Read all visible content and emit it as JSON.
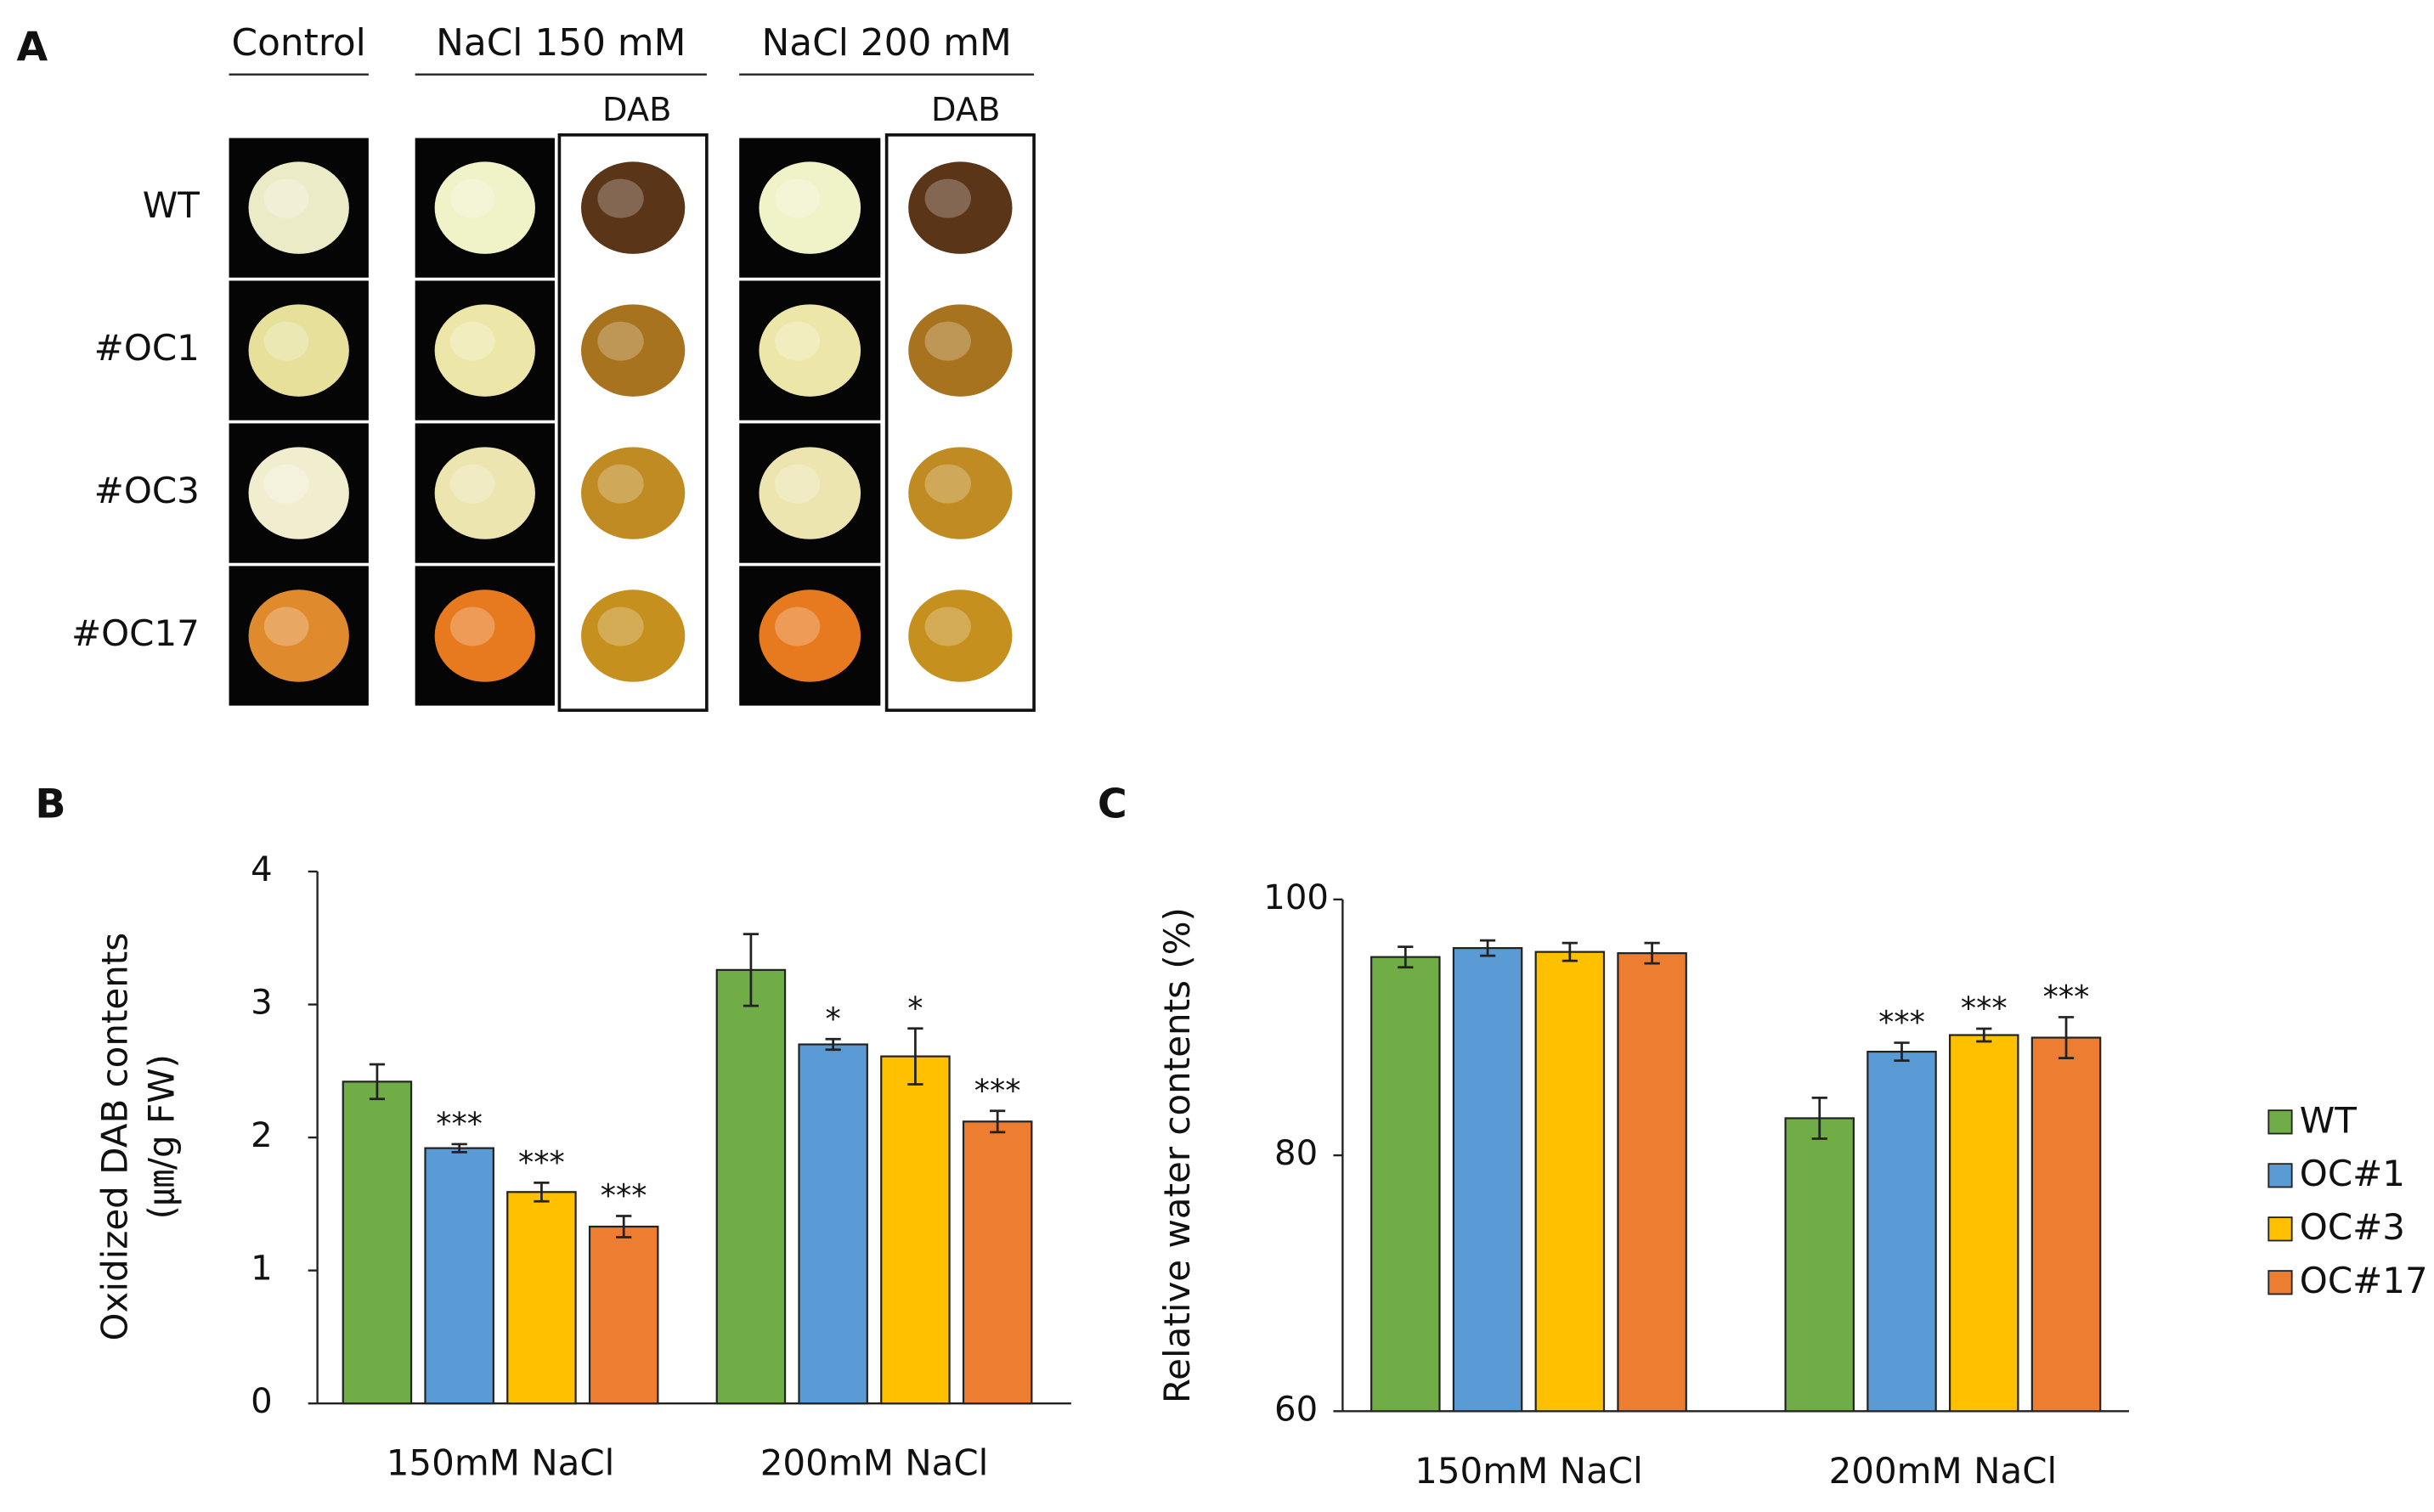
{
  "panel_a": {
    "label": "A",
    "columns": [
      "Control",
      "NaCl 150 mM",
      "NaCl 200 mM"
    ],
    "stain": [
      "DAB",
      "DAB"
    ],
    "rows": [
      "WT",
      "#OC1",
      "#OC3",
      "#OC17"
    ]
  },
  "chart_data": [
    {
      "type": "bar",
      "panel_label": "B",
      "y_label": [
        "Oxidized DAB contents",
        "(㎛/g FW)"
      ],
      "categories": [
        "150mM NaCl",
        "200mM NaCl"
      ],
      "ylim": [
        0,
        4
      ],
      "yticks": [
        0,
        1,
        2,
        3,
        4
      ],
      "series": [
        {
          "color": "#70ad47",
          "values": [
            2.42,
            3.26
          ],
          "errors": [
            0.13,
            0.27
          ],
          "significance": [
            null,
            null
          ]
        },
        {
          "color": "#5b9bd5",
          "values": [
            1.92,
            2.7
          ],
          "errors": [
            0.03,
            0.04
          ],
          "significance": [
            "***",
            "*"
          ]
        },
        {
          "color": "#ffc000",
          "values": [
            1.59,
            2.61
          ],
          "errors": [
            0.07,
            0.21
          ],
          "significance": [
            "***",
            "*"
          ]
        },
        {
          "color": "#ed7d31",
          "values": [
            1.33,
            2.12
          ],
          "errors": [
            0.08,
            0.08
          ],
          "significance": [
            "***",
            "***"
          ]
        }
      ]
    },
    {
      "type": "bar",
      "panel_label": "C",
      "y_label": [
        "Relative water contents (%)"
      ],
      "categories": [
        "150mM NaCl",
        "200mM NaCl"
      ],
      "ylim": [
        60,
        100
      ],
      "yticks": [
        60,
        80,
        100
      ],
      "series": [
        {
          "name": "WT",
          "color": "#70ad47",
          "values": [
            95.5,
            82.9
          ],
          "errors": [
            0.8,
            1.6
          ],
          "significance": [
            null,
            null
          ]
        },
        {
          "name": "OC#1",
          "color": "#5b9bd5",
          "values": [
            96.2,
            88.1
          ],
          "errors": [
            0.6,
            0.7
          ],
          "significance": [
            null,
            "***"
          ]
        },
        {
          "name": "OC#3",
          "color": "#ffc000",
          "values": [
            95.9,
            89.4
          ],
          "errors": [
            0.7,
            0.5
          ],
          "significance": [
            null,
            "***"
          ]
        },
        {
          "name": "OC#17",
          "color": "#ed7d31",
          "values": [
            95.8,
            89.2
          ],
          "errors": [
            0.8,
            1.6
          ],
          "significance": [
            null,
            "***"
          ]
        }
      ]
    }
  ]
}
